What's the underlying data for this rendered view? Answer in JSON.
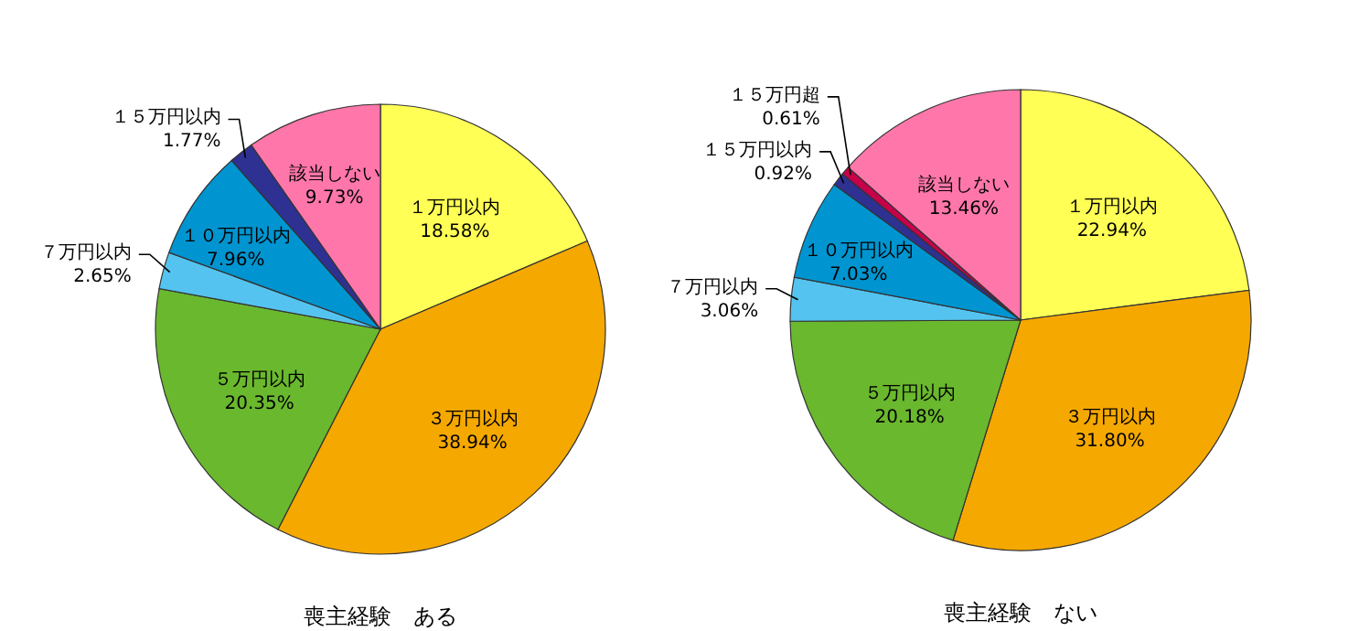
{
  "chart_data": [
    {
      "type": "pie",
      "title": "喪主経験　ある",
      "categories": [
        "１万円以内",
        "３万円以内",
        "５万円以内",
        "７万円以内",
        "１０万円以内",
        "１５万円以内",
        "該当しない"
      ],
      "values": [
        18.58,
        38.94,
        20.35,
        2.65,
        7.96,
        1.77,
        9.73
      ],
      "value_labels": [
        "18.58%",
        "38.94%",
        "20.35%",
        "2.65%",
        "7.96%",
        "1.77%",
        "9.73%"
      ],
      "colors": [
        "#ffff55",
        "#f5a800",
        "#6ab82e",
        "#55c3ef",
        "#0095d0",
        "#2e3192",
        "#ff77aa"
      ]
    },
    {
      "type": "pie",
      "title": "喪主経験　ない",
      "categories": [
        "１万円以内",
        "３万円以内",
        "５万円以内",
        "７万円以内",
        "１０万円以内",
        "１５万円以内",
        "１５万円超",
        "該当しない"
      ],
      "values": [
        22.94,
        31.8,
        20.18,
        3.06,
        7.03,
        0.92,
        0.61,
        13.46
      ],
      "value_labels": [
        "22.94%",
        "31.80%",
        "20.18%",
        "3.06%",
        "7.03%",
        "0.92%",
        "0.61%",
        "13.46%"
      ],
      "colors": [
        "#ffff55",
        "#f5a800",
        "#6ab82e",
        "#55c3ef",
        "#0095d0",
        "#2e3192",
        "#c8004b",
        "#ff77aa"
      ]
    }
  ]
}
